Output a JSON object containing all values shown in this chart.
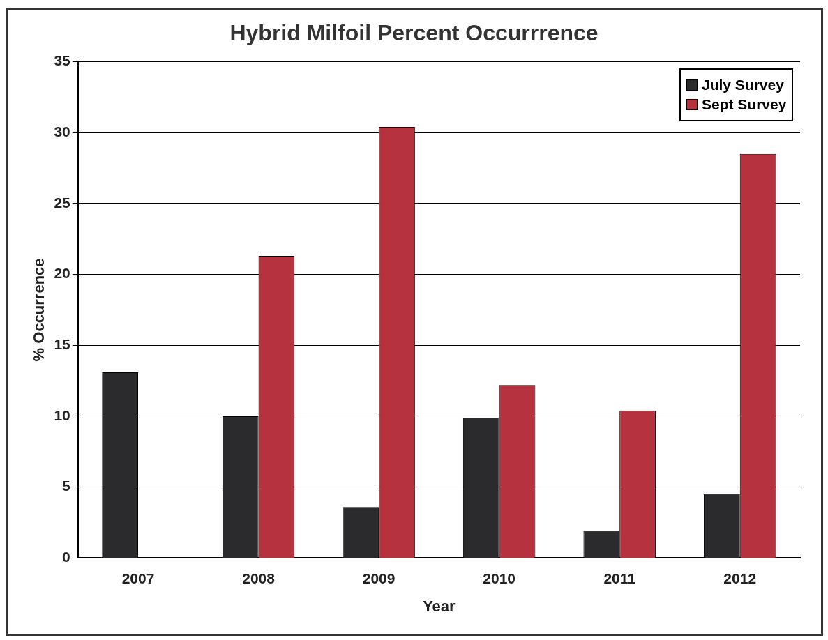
{
  "chart_data": {
    "type": "bar",
    "title": "Hybrid Milfoil Percent Occurrrence",
    "xlabel": "Year",
    "ylabel": "% Occurrence",
    "categories": [
      "2007",
      "2008",
      "2009",
      "2010",
      "2011",
      "2012"
    ],
    "series": [
      {
        "name": "July Survey",
        "color": "#2b2b2e",
        "values": [
          13.1,
          10.0,
          3.6,
          9.9,
          1.9,
          4.5
        ]
      },
      {
        "name": "Sept Survey",
        "color": "#b5323e",
        "values": [
          null,
          21.3,
          30.4,
          12.2,
          10.4,
          28.5
        ]
      }
    ],
    "ylim": [
      0,
      35
    ],
    "yticks": [
      0,
      5,
      10,
      15,
      20,
      25,
      30,
      35
    ],
    "grid": "y",
    "legend": "top right"
  }
}
